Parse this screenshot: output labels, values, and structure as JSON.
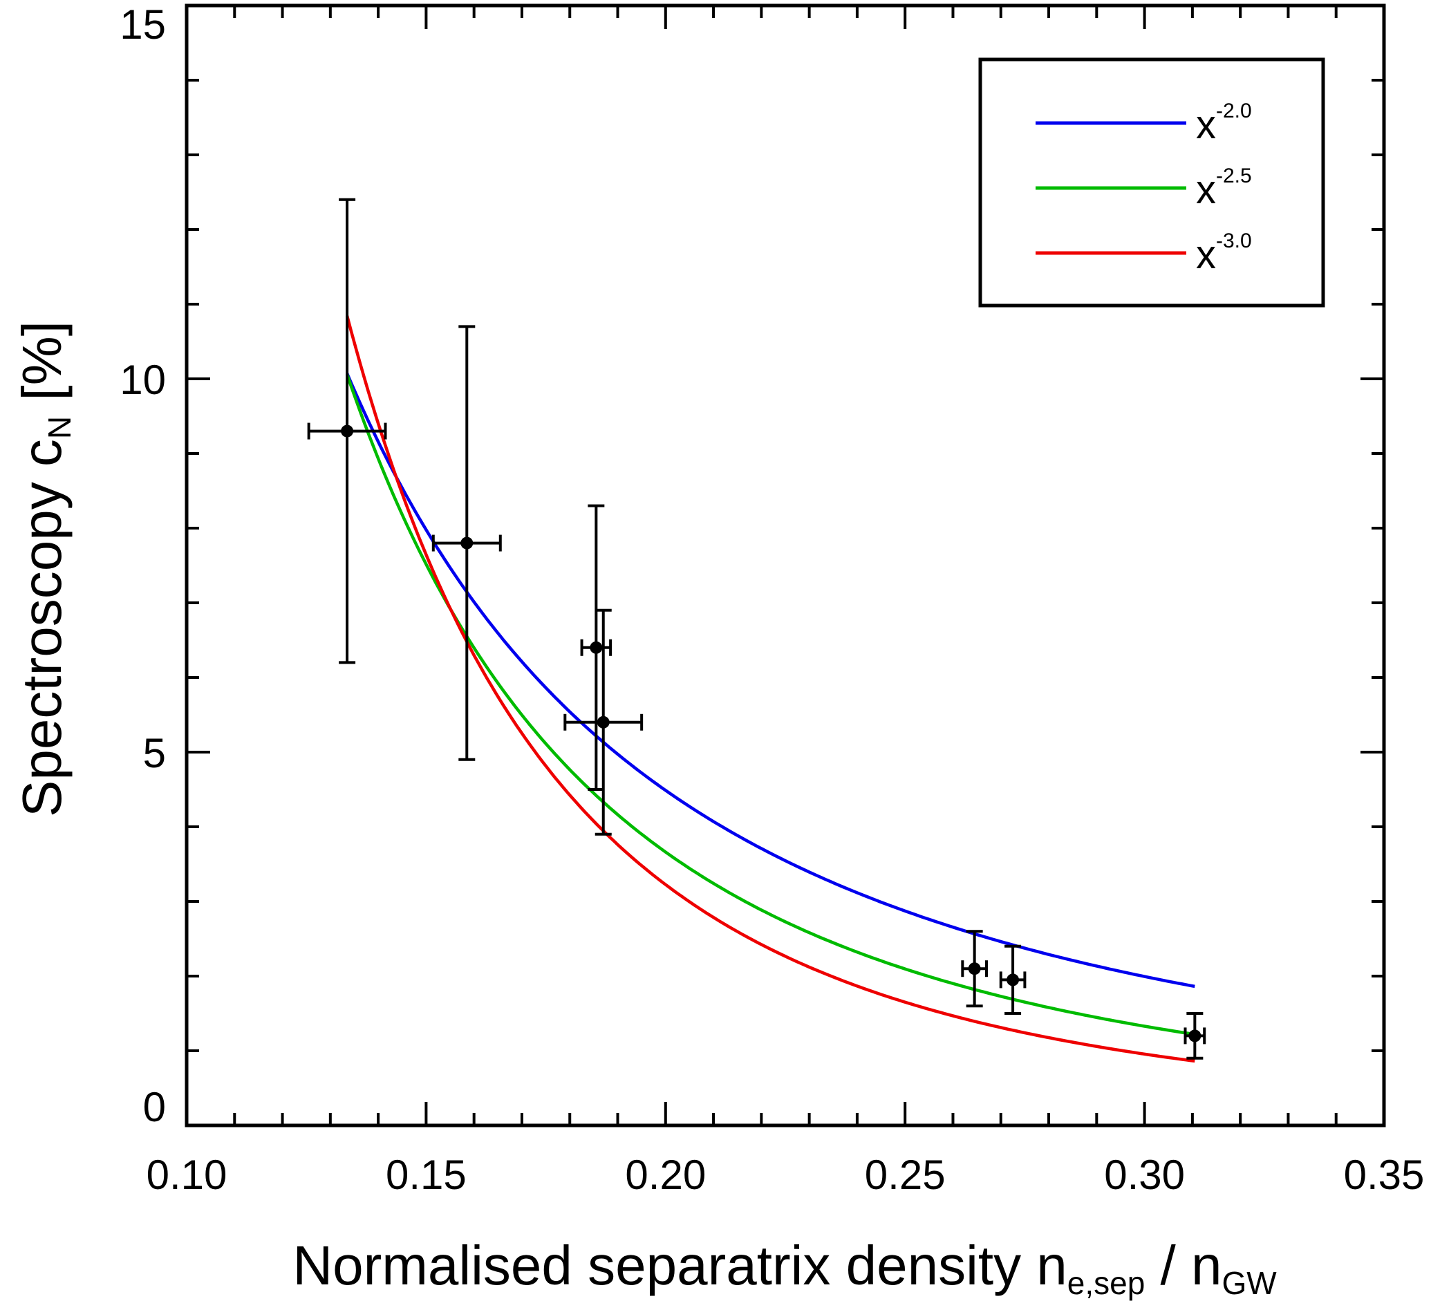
{
  "chart_data": {
    "type": "scatter",
    "xlabel": {
      "main": "Normalised separatrix density n",
      "sub1": "e,sep",
      "mid": " / n",
      "sub2": "GW"
    },
    "ylabel": {
      "main": "Spectroscopy c",
      "sub": "N",
      "tail": " [%]"
    },
    "xlim": [
      0.1,
      0.35
    ],
    "ylim": [
      0,
      15
    ],
    "x_ticks": [
      "0.10",
      "0.15",
      "0.20",
      "0.25",
      "0.30",
      "0.35"
    ],
    "y_ticks": [
      "0",
      "5",
      "10",
      "15"
    ],
    "legend_position": "top-right",
    "grid": false,
    "points": [
      {
        "x": 0.1335,
        "y": 9.3,
        "xerr": 0.008,
        "yerr": 3.1
      },
      {
        "x": 0.1585,
        "y": 7.8,
        "xerr": 0.007,
        "yerr": 2.9
      },
      {
        "x": 0.1855,
        "y": 6.4,
        "xerr": 0.003,
        "yerr": 1.9
      },
      {
        "x": 0.187,
        "y": 5.4,
        "xerr": 0.008,
        "yerr": 1.5
      },
      {
        "x": 0.2645,
        "y": 2.1,
        "xerr": 0.0025,
        "yerr": 0.5
      },
      {
        "x": 0.2725,
        "y": 1.95,
        "xerr": 0.0025,
        "yerr": 0.45
      },
      {
        "x": 0.3105,
        "y": 1.2,
        "xerr": 0.002,
        "yerr": 0.3
      }
    ],
    "series": [
      {
        "base": "x",
        "exponent": "-2.0",
        "color": "#0000ee",
        "coef": 0.1795,
        "power": -2.0,
        "x_range": [
          0.1335,
          0.3105
        ]
      },
      {
        "base": "x",
        "exponent": "-2.5",
        "color": "#00bb00",
        "coef": 0.0655,
        "power": -2.5,
        "x_range": [
          0.1335,
          0.3105
        ]
      },
      {
        "base": "x",
        "exponent": "-3.0",
        "color": "#ee0000",
        "coef": 0.0258,
        "power": -3.0,
        "x_range": [
          0.1335,
          0.3105
        ]
      }
    ]
  }
}
